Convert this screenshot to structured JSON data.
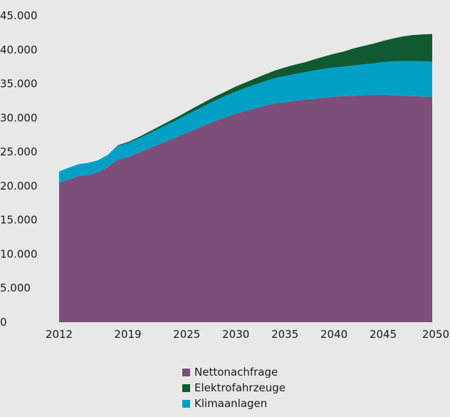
{
  "chart_data": {
    "type": "area",
    "stacked": true,
    "title": "",
    "xlabel": "",
    "ylabel": "",
    "ylim": [
      0,
      45000
    ],
    "xlim": [
      2012,
      2050
    ],
    "y_ticks": [
      0,
      5000,
      10000,
      15000,
      20000,
      25000,
      30000,
      35000,
      40000,
      45000
    ],
    "y_tick_labels": [
      "0",
      "5.000",
      "10.000",
      "15.000",
      "20.000",
      "25.000",
      "30.000",
      "35.000",
      "40.000",
      "45.000"
    ],
    "x_ticks": [
      2012,
      2019,
      2025,
      2030,
      2035,
      2040,
      2045,
      2050
    ],
    "x_tick_labels": [
      "2012",
      "2019",
      "2025",
      "2030",
      "2035",
      "2040",
      "2045",
      "2050"
    ],
    "legend_position": "bottom",
    "grid": false,
    "x": [
      2012,
      2013,
      2014,
      2015,
      2016,
      2017,
      2018,
      2019,
      2020,
      2021,
      2022,
      2023,
      2024,
      2025,
      2026,
      2027,
      2028,
      2029,
      2030,
      2031,
      2032,
      2033,
      2034,
      2035,
      2036,
      2037,
      2038,
      2039,
      2040,
      2041,
      2042,
      2043,
      2044,
      2045,
      2046,
      2047,
      2048,
      2049,
      2050
    ],
    "series": [
      {
        "name": "Nettonachfrage",
        "color": "#7b4f7a",
        "values": [
          20500,
          20900,
          21500,
          21600,
          22000,
          22800,
          23900,
          24200,
          24800,
          25400,
          26000,
          26600,
          27200,
          27800,
          28400,
          29000,
          29600,
          30100,
          30600,
          31000,
          31400,
          31800,
          32100,
          32300,
          32500,
          32650,
          32800,
          32950,
          33100,
          33200,
          33250,
          33300,
          33350,
          33400,
          33300,
          33250,
          33200,
          33150,
          33100
        ]
      },
      {
        "name": "Klimaanlagen",
        "color": "#00a0c6",
        "values": [
          1600,
          1800,
          1700,
          1800,
          1800,
          1800,
          2000,
          2100,
          2100,
          2200,
          2300,
          2400,
          2500,
          2650,
          2800,
          2900,
          3000,
          3150,
          3250,
          3400,
          3500,
          3600,
          3750,
          3850,
          3950,
          4050,
          4150,
          4250,
          4300,
          4350,
          4450,
          4550,
          4650,
          4800,
          5000,
          5100,
          5150,
          5150,
          5150
        ]
      },
      {
        "name": "Elektrofahrzeuge",
        "color": "#0f5a30",
        "values": [
          0,
          0,
          0,
          0,
          0,
          0,
          100,
          150,
          200,
          250,
          300,
          350,
          400,
          450,
          500,
          550,
          600,
          650,
          750,
          800,
          900,
          1000,
          1100,
          1250,
          1350,
          1450,
          1650,
          1800,
          2000,
          2200,
          2500,
          2700,
          2900,
          3100,
          3350,
          3600,
          3800,
          3950,
          4050
        ]
      }
    ]
  }
}
